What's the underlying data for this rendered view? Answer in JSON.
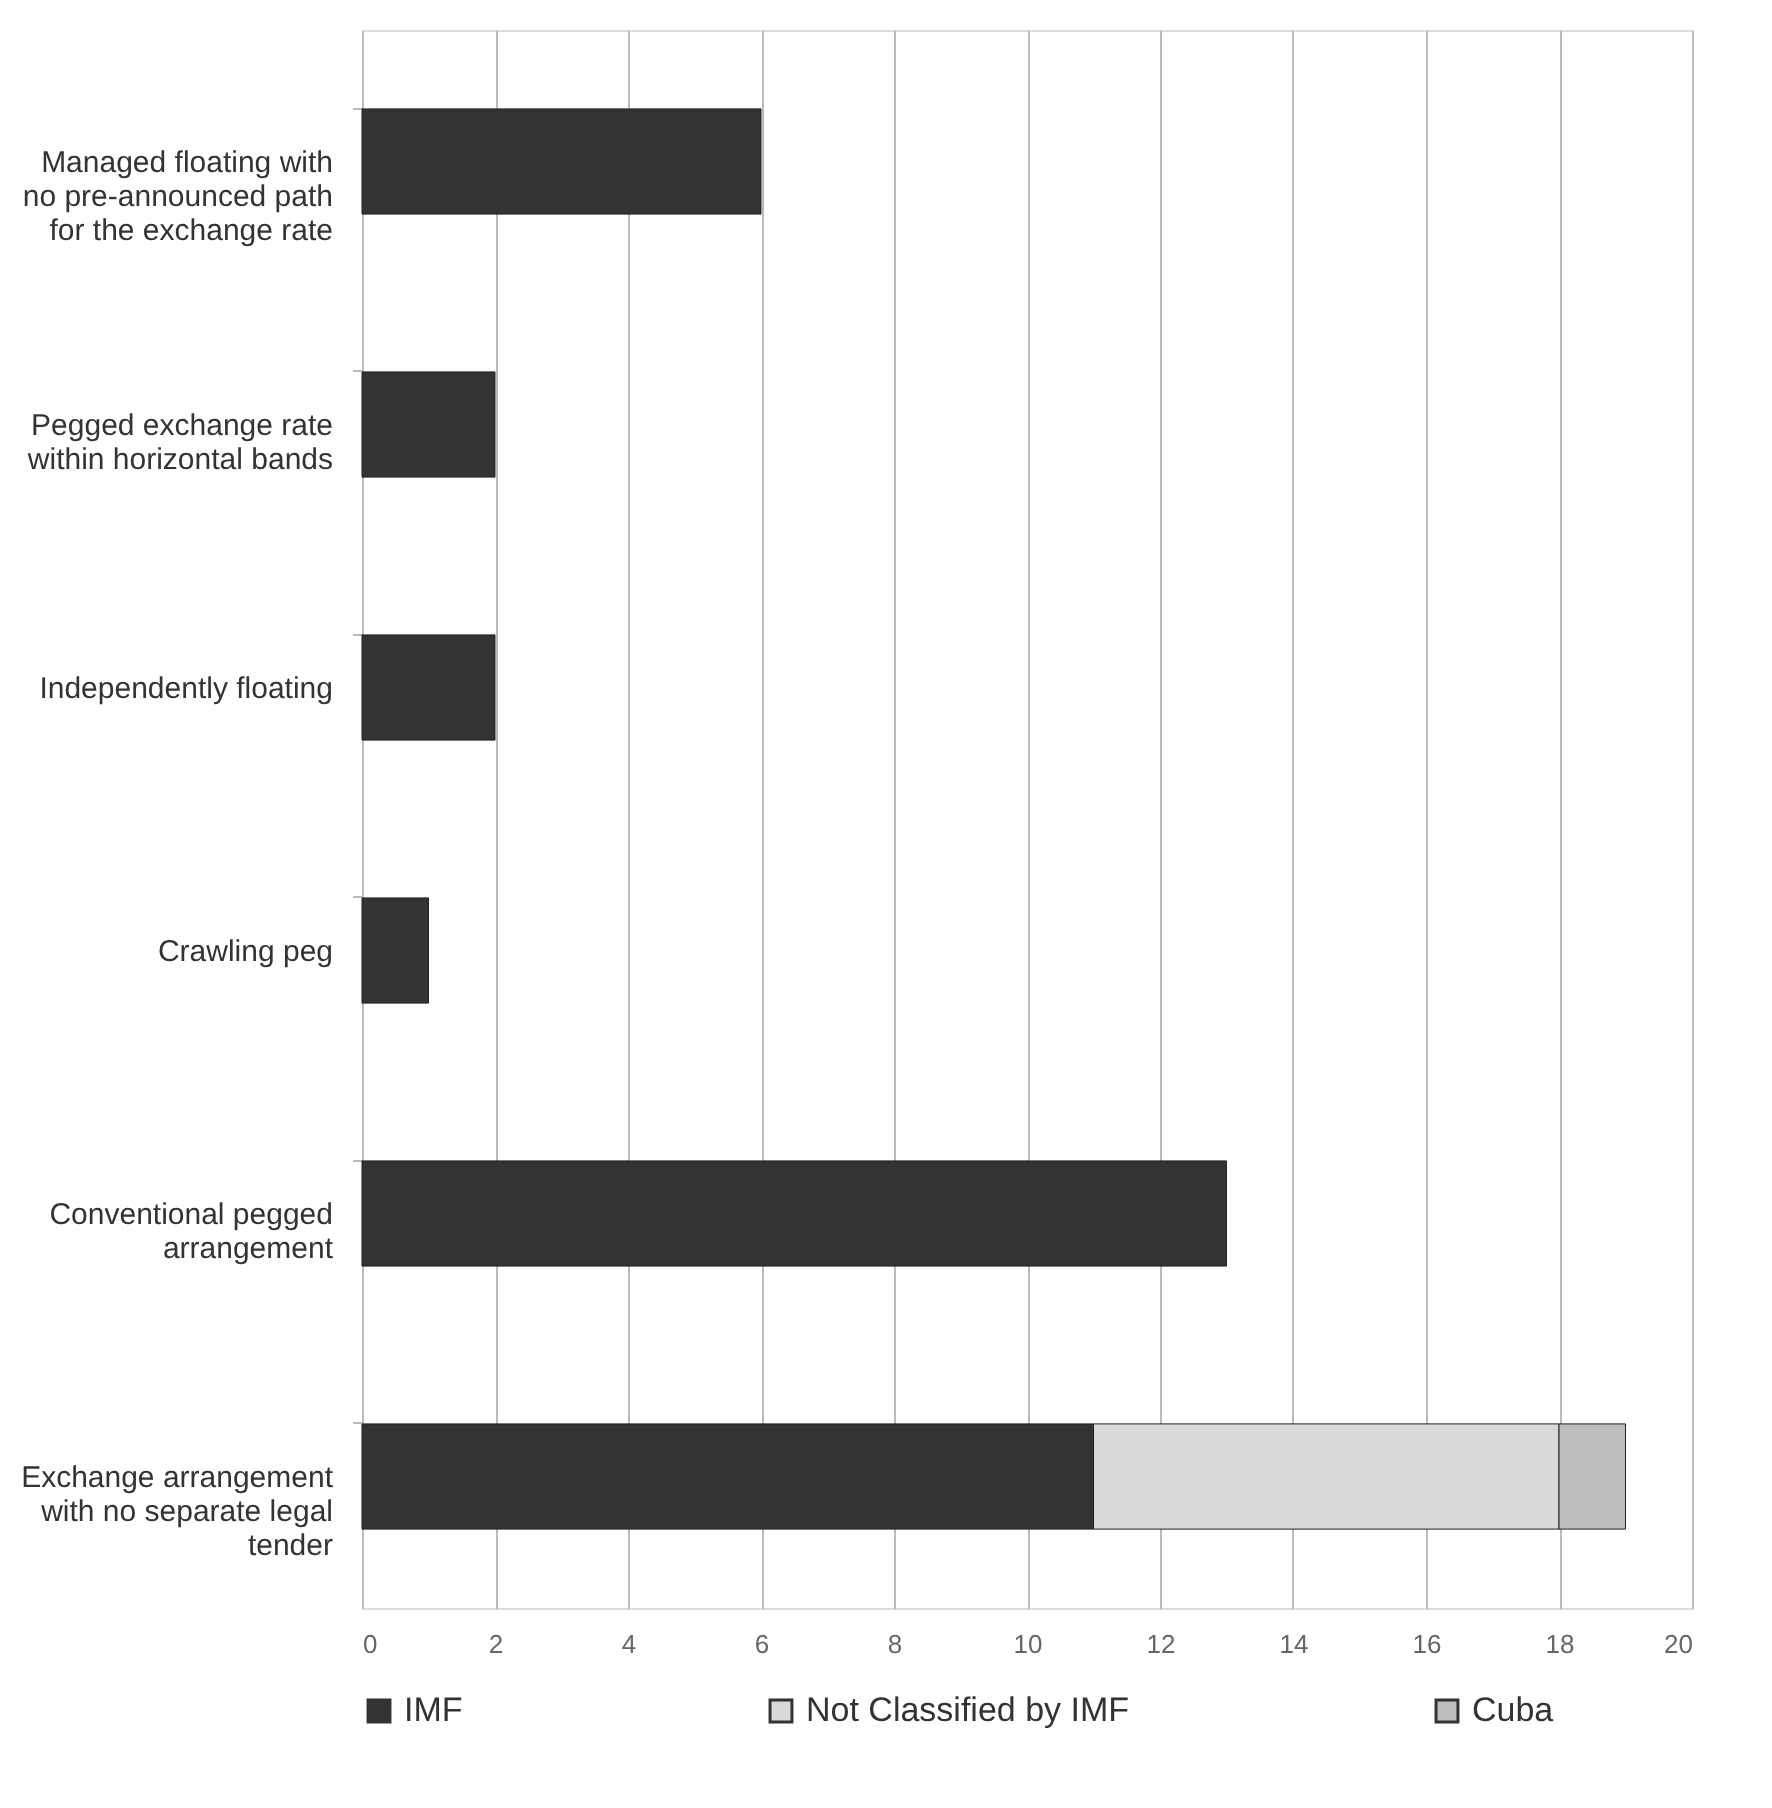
{
  "chart_data": {
    "type": "bar",
    "orientation": "horizontal",
    "stacked": true,
    "categories": [
      "Managed floating with no pre-announced path for the exchange rate",
      "Pegged exchange rate within horizontal bands",
      "Independently floating",
      "Crawling peg",
      "Conventional pegged arrangement",
      "Exchange arrangement with no separate legal tender"
    ],
    "series": [
      {
        "name": "IMF",
        "color": "#333333",
        "values": [
          6,
          2,
          2,
          1,
          13,
          11
        ]
      },
      {
        "name": "Not Classified by IMF",
        "color": "#d9d9d9",
        "values": [
          null,
          null,
          null,
          null,
          null,
          7
        ]
      },
      {
        "name": "Cuba",
        "color": "#bdbdbd",
        "values": [
          null,
          null,
          null,
          null,
          null,
          1
        ]
      }
    ],
    "xlim": [
      0,
      20
    ],
    "xticks": [
      0,
      2,
      4,
      6,
      8,
      10,
      12,
      14,
      16,
      18,
      20
    ],
    "grid": "x",
    "legend": "bottom"
  }
}
